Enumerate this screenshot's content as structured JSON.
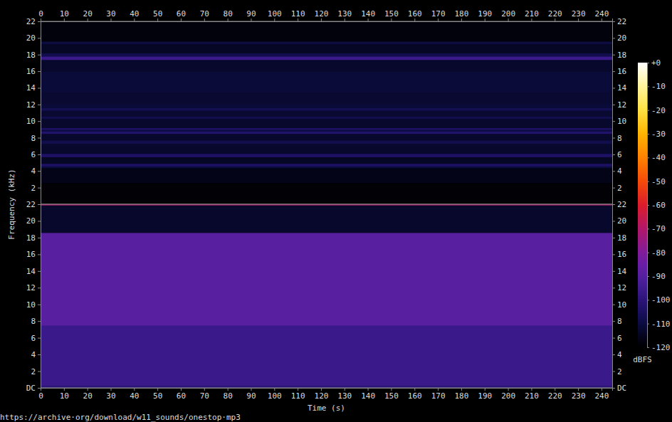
{
  "chart_data": {
    "type": "heatmap",
    "x_label": "Time (s)",
    "y_label": "Frequency (kHz)",
    "footer": "https://archive·org/download/w11_sounds/onestop·mp3",
    "xlim": [
      0,
      244.6
    ],
    "xticks": [
      0,
      10,
      20,
      30,
      40,
      50,
      60,
      70,
      80,
      90,
      100,
      110,
      120,
      130,
      140,
      150,
      160,
      170,
      180,
      190,
      200,
      210,
      220,
      230,
      240
    ],
    "panels": [
      {
        "ylim": [
          0,
          22
        ],
        "yticks": [
          2,
          4,
          6,
          8,
          10,
          12,
          14,
          16,
          18,
          20,
          22
        ],
        "bins": [
          0,
          2.6,
          4.4,
          4.6,
          4.9,
          5.7,
          6.1,
          7.3,
          7.7,
          8.5,
          8.8,
          9.0,
          9.2,
          10.3,
          10.6,
          11.3,
          11.6,
          12.1,
          13.5,
          16,
          17.4,
          17.8,
          18.2,
          19.3,
          19.6,
          22
        ],
        "values": [
          -119,
          -116,
          -110,
          -104,
          -114,
          -104,
          -113,
          -108,
          -113,
          -103,
          -110,
          -104,
          -113,
          -108,
          -112,
          -107,
          -111,
          -112,
          -111,
          -113,
          -96,
          -108,
          -114,
          -110,
          -118
        ]
      },
      {
        "ylim": [
          0,
          22
        ],
        "yticks": [
          {
            "value": 0,
            "label": "DC"
          },
          2,
          4,
          6,
          8,
          10,
          12,
          14,
          16,
          18,
          20,
          22
        ],
        "bins": [
          0,
          0.3,
          7.5,
          18.6,
          21.9,
          22
        ],
        "values": [
          -100,
          -96,
          -89,
          -113,
          -70
        ]
      }
    ],
    "colorbar": {
      "label": "dBFS",
      "range": [
        -120,
        0
      ],
      "ticks": [
        {
          "value": 0,
          "label": "+0"
        },
        -10,
        -20,
        -30,
        -40,
        -50,
        -60,
        -70,
        -80,
        -90,
        -100,
        -110,
        -120
      ]
    }
  }
}
